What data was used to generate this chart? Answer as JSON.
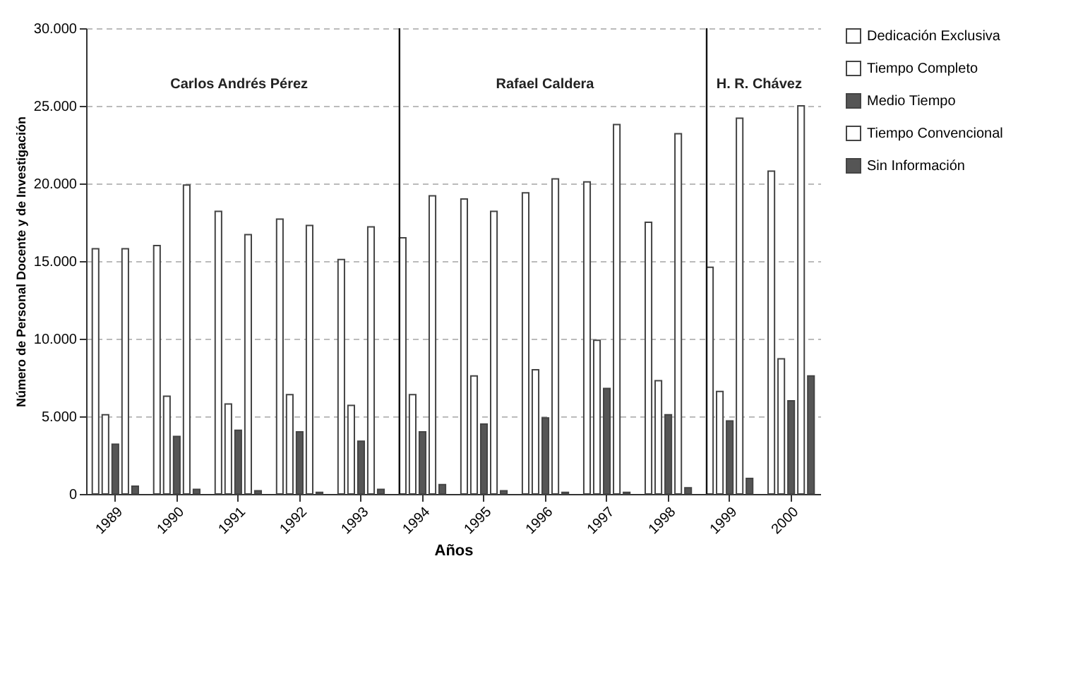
{
  "chart_data": {
    "type": "bar",
    "xlabel": "Años",
    "ylabel": "Número de Personal Docente y de Investigación",
    "categories": [
      "1989",
      "1990",
      "1991",
      "1992",
      "1993",
      "1994",
      "1995",
      "1996",
      "1997",
      "1998",
      "1999",
      "2000"
    ],
    "series": [
      {
        "name": "Dedicación Exclusiva",
        "color": "#ffffff",
        "values": [
          15800,
          16000,
          18200,
          17700,
          15100,
          16500,
          19000,
          19400,
          20100,
          17500,
          14600,
          20800
        ]
      },
      {
        "name": "Tiempo Completo",
        "color": "#ffffff",
        "values": [
          5100,
          6300,
          5800,
          6400,
          5700,
          6400,
          7600,
          8000,
          9900,
          7300,
          6600,
          8700
        ]
      },
      {
        "name": "Medio Tiempo",
        "color": "#555555",
        "values": [
          3200,
          3700,
          4100,
          4000,
          3400,
          4000,
          4500,
          4900,
          6800,
          5100,
          4700,
          6000
        ]
      },
      {
        "name": "Tiempo Convencional",
        "color": "#ffffff",
        "values": [
          15800,
          19900,
          16700,
          17300,
          17200,
          19200,
          18200,
          20300,
          23800,
          23200,
          24200,
          25000
        ]
      },
      {
        "name": "Sin Información",
        "color": "#555555",
        "values": [
          500,
          300,
          200,
          100,
          300,
          600,
          200,
          100,
          100,
          400,
          1000,
          7600
        ]
      }
    ],
    "ylim": [
      0,
      30000
    ],
    "yticks": [
      {
        "value": 0,
        "label": "0"
      },
      {
        "value": 5000,
        "label": "5.000"
      },
      {
        "value": 10000,
        "label": "10.000"
      },
      {
        "value": 15000,
        "label": "15.000"
      },
      {
        "value": 20000,
        "label": "20.000"
      },
      {
        "value": 25000,
        "label": "25.000"
      },
      {
        "value": 30000,
        "label": "30.000"
      }
    ],
    "grid": "y",
    "legend": "right",
    "ref_lines": [
      {
        "axis": "x",
        "value": "1994"
      },
      {
        "axis": "x",
        "value": "1999"
      }
    ],
    "annotations": [
      "Carlos Andrés Pérez",
      "Rafael Caldera",
      "H. R. Chávez"
    ]
  }
}
